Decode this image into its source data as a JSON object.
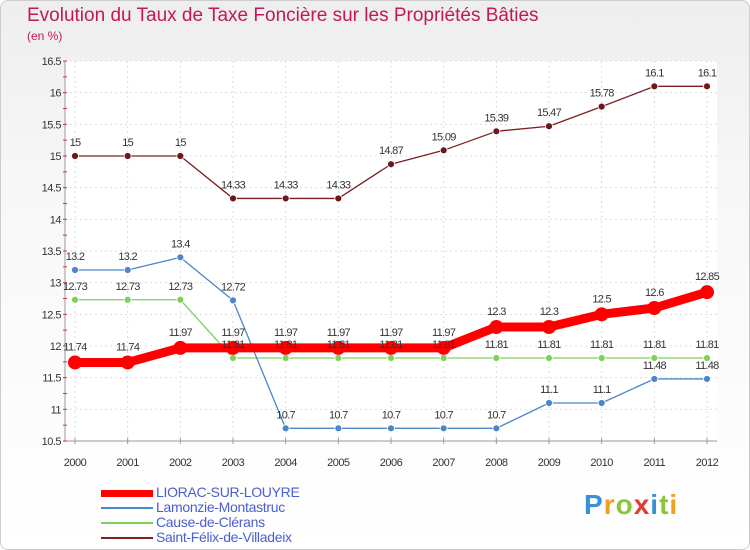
{
  "title": "Evolution du Taux de Taxe Foncière sur les Propriétés Bâties",
  "subtitle": "(en %)",
  "brand": {
    "p": "P",
    "r": "r",
    "o": "o",
    "x": "x",
    "i1": "i",
    "t": "t",
    "i2": "i"
  },
  "chart_data": {
    "type": "line",
    "title": "Evolution du Taux de Taxe Foncière sur les Propriétés Bâties",
    "ylabel": "(en %)",
    "xlabel": "",
    "ylim": [
      10.5,
      16.5
    ],
    "yticks": [
      10.5,
      11,
      11.5,
      12,
      12.5,
      13,
      13.5,
      14,
      14.5,
      15,
      15.5,
      16,
      16.5
    ],
    "ytick_labels": [
      "10.5",
      "11",
      "11.5",
      "12",
      "12.5",
      "13",
      "13.5",
      "14",
      "14.5",
      "15",
      "15.5",
      "16",
      "16.5"
    ],
    "x": [
      "2000",
      "2001",
      "2002",
      "2003",
      "2004",
      "2005",
      "2006",
      "2007",
      "2008",
      "2009",
      "2010",
      "2011",
      "2012"
    ],
    "series": [
      {
        "name": "LIORAC-SUR-LOUYRE",
        "color": "#ff0000",
        "values": [
          11.74,
          11.74,
          11.97,
          11.97,
          11.97,
          11.97,
          11.97,
          11.97,
          12.3,
          12.3,
          12.5,
          12.6,
          12.85
        ],
        "labels": [
          "11.74",
          "11.74",
          "11.97",
          "11.97",
          "11.97",
          "11.97",
          "11.97",
          "11.97",
          "12.3",
          "12.3",
          "12.5",
          "12.6",
          "12.85"
        ]
      },
      {
        "name": "Lamonzie-Montastruc",
        "color": "#4a86c8",
        "values": [
          13.2,
          13.2,
          13.4,
          12.72,
          10.7,
          10.7,
          10.7,
          10.7,
          10.7,
          11.1,
          11.1,
          11.48,
          11.48
        ],
        "labels": [
          "13.2",
          "13.2",
          "13.4",
          "12.72",
          "10.7",
          "10.7",
          "10.7",
          "10.7",
          "10.7",
          "11.1",
          "11.1",
          "11.48",
          "11.48"
        ]
      },
      {
        "name": "Cause-de-Clérans",
        "color": "#7dd05a",
        "values": [
          12.73,
          12.73,
          12.73,
          11.81,
          11.81,
          11.81,
          11.81,
          11.81,
          11.81,
          11.81,
          11.81,
          11.81,
          11.81
        ],
        "labels": [
          "12.73",
          "12.73",
          "12.73",
          "11.81",
          "11.81",
          "11.81",
          "11.81",
          "11.81",
          "11.81",
          "11.81",
          "11.81",
          "11.81",
          "11.81"
        ]
      },
      {
        "name": "Saint-Félix-de-Villadeix",
        "color": "#7a2020",
        "values": [
          15,
          15,
          15,
          14.33,
          14.33,
          14.33,
          14.87,
          15.09,
          15.39,
          15.47,
          15.78,
          16.1,
          16.1
        ],
        "labels": [
          "15",
          "15",
          "15",
          "14.33",
          "14.33",
          "14.33",
          "14.87",
          "15.09",
          "15.39",
          "15.47",
          "15.78",
          "16.1",
          "16.1"
        ]
      }
    ]
  }
}
